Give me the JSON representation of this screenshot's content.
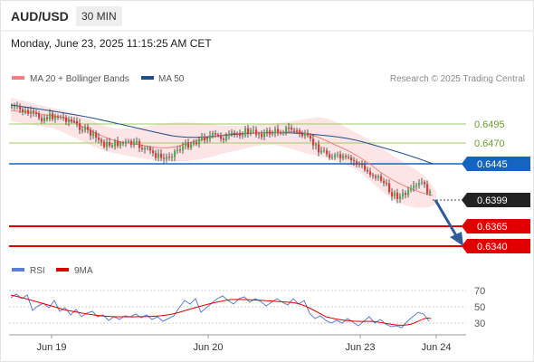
{
  "header": {
    "symbol": "AUD/USD",
    "timeframe": "30 MIN",
    "datetime": "Monday, June 23, 2025 11:15:25 AM CET"
  },
  "legend": {
    "ma20": {
      "label": "MA 20 + Bollinger Bands",
      "color": "#f08080"
    },
    "ma50": {
      "label": "MA 50",
      "color": "#1f4e8c"
    },
    "source": "Research © 2025 Trading Central"
  },
  "price_levels": [
    {
      "value": "0.6495",
      "kind": "resistance-thin",
      "color": "#7cb342"
    },
    {
      "value": "0.6470",
      "kind": "resistance-thin",
      "color": "#7cb342"
    },
    {
      "value": "0.6445",
      "kind": "pivot",
      "color": "#1565c0"
    },
    {
      "value": "0.6399",
      "kind": "current",
      "color": "#222222"
    },
    {
      "value": "0.6365",
      "kind": "target",
      "color": "#e00000"
    },
    {
      "value": "0.6340",
      "kind": "target",
      "color": "#e00000"
    }
  ],
  "rsi_panel": {
    "rsi_label": "RSI",
    "rsi_color": "#5b7fd6",
    "ma_label": "9MA",
    "ma_color": "#e00000",
    "levels": [
      "70",
      "50",
      "30"
    ]
  },
  "x_axis": {
    "ticks": [
      "Jun 19",
      "Jun 20",
      "Jun 23",
      "Jun 24"
    ]
  },
  "colors": {
    "bull": "#4caf50",
    "bear": "#e53935",
    "band": "#fde0e0",
    "arrow": "#2e5c9a"
  }
}
